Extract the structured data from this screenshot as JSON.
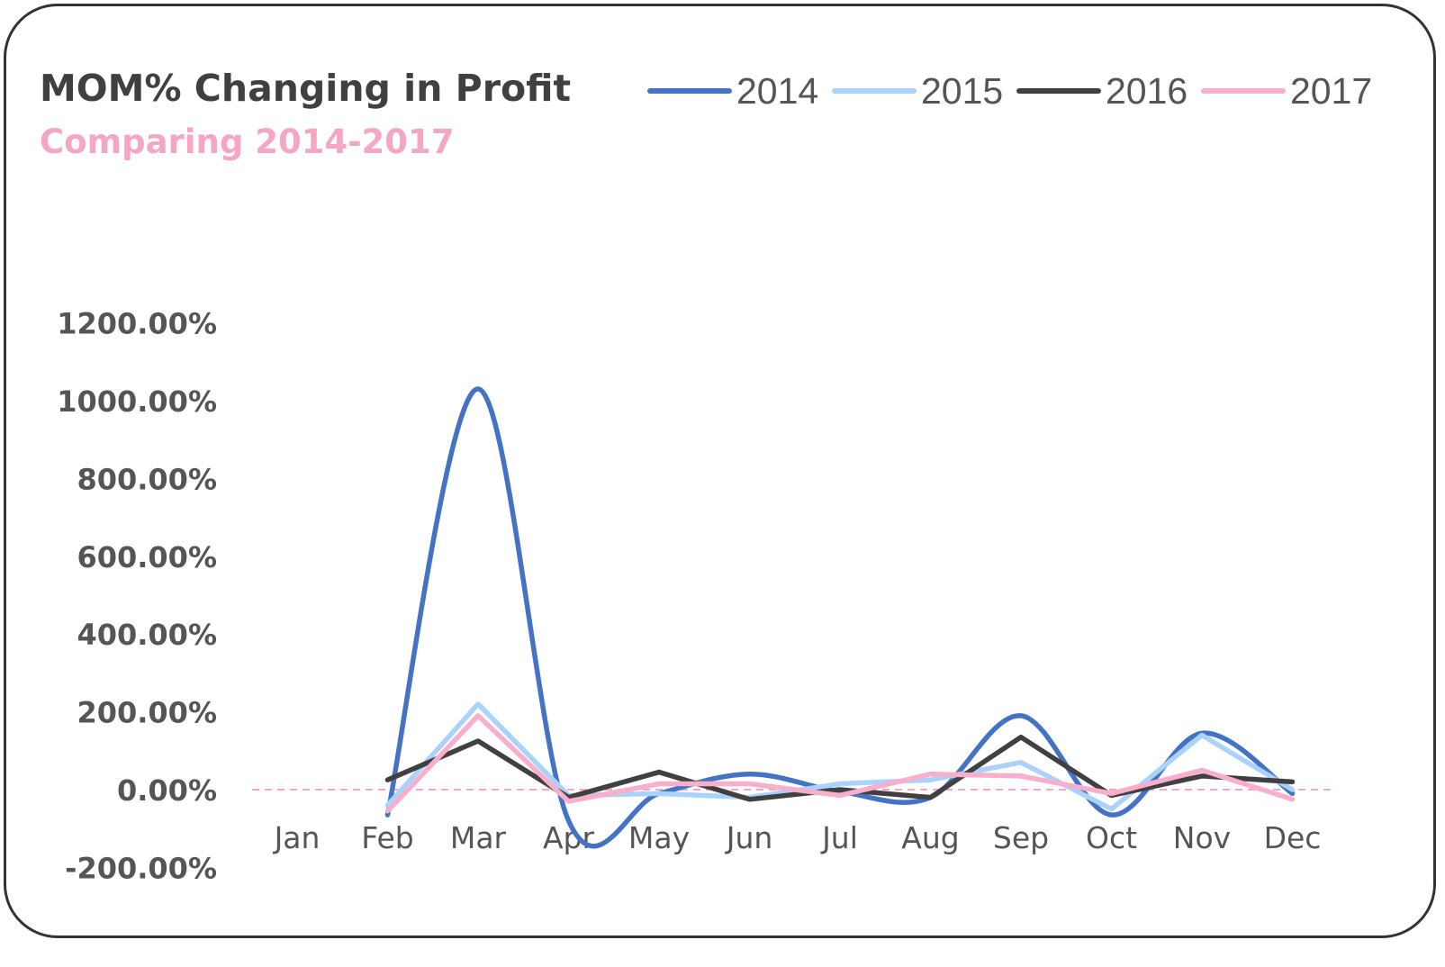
{
  "chart_data": {
    "type": "line",
    "title": "MOM% Changing in Profit",
    "subtitle": "Comparing 2014-2017",
    "categories": [
      "Jan",
      "Feb",
      "Mar",
      "Apr",
      "May",
      "Jun",
      "Jul",
      "Aug",
      "Sep",
      "Oct",
      "Nov",
      "Dec"
    ],
    "ylim": [
      -200,
      1200
    ],
    "yticks": [
      -200,
      0,
      200,
      400,
      600,
      800,
      1000,
      1200
    ],
    "ytick_labels": [
      "-200.00%",
      "0.00%",
      "200.00%",
      "400.00%",
      "600.00%",
      "800.00%",
      "1000.00%",
      "1200.00%"
    ],
    "grid": false,
    "zero_line": {
      "style": "dashed",
      "color": "#F4A6C3"
    },
    "legend_position": "top-right",
    "series": [
      {
        "name": "2014",
        "color": "#4472C4",
        "smooth": true,
        "values": [
          null,
          -65,
          1030,
          -80,
          -10,
          40,
          -5,
          -20,
          190,
          -65,
          145,
          -10
        ]
      },
      {
        "name": "2015",
        "color": "#A9D3FB",
        "smooth": false,
        "values": [
          null,
          -40,
          220,
          -15,
          -10,
          -20,
          15,
          25,
          70,
          -50,
          140,
          0
        ]
      },
      {
        "name": "2016",
        "color": "#404040",
        "smooth": false,
        "values": [
          null,
          25,
          125,
          -20,
          45,
          -25,
          0,
          -20,
          135,
          -15,
          35,
          20
        ]
      },
      {
        "name": "2017",
        "color": "#F9AECB",
        "smooth": false,
        "values": [
          null,
          -55,
          190,
          -30,
          15,
          15,
          -15,
          40,
          35,
          -10,
          50,
          -25
        ]
      }
    ]
  }
}
